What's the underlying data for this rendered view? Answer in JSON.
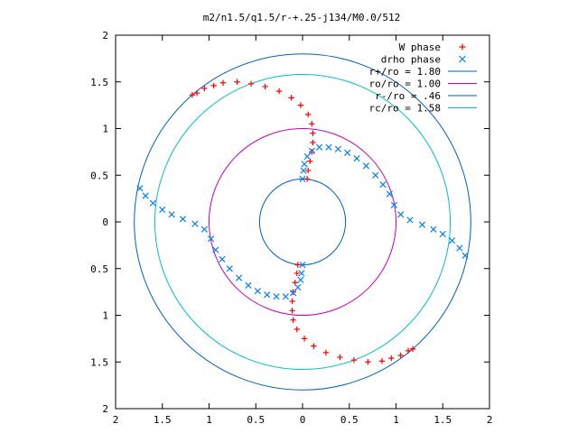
{
  "chart_data": {
    "type": "scatter",
    "title": "m2/n1.5/q1.5/r-+.25-j134/M0.0/512",
    "xlabel": "",
    "ylabel": "",
    "xlim": [
      -2,
      2
    ],
    "ylim": [
      -2,
      2
    ],
    "xtick_labels": [
      "2",
      "1.5",
      "1",
      "0.5",
      "0",
      "0.5",
      "1",
      "1.5",
      "2"
    ],
    "ytick_labels": [
      "2",
      "1.5",
      "1",
      "0.5",
      "0",
      "0.5",
      "1",
      "1.5",
      "2"
    ],
    "grid": false,
    "legend_position": "top-right",
    "legend": [
      {
        "label": "W phase",
        "marker": "+",
        "color": "#ff0000"
      },
      {
        "label": "drho phase",
        "marker": "x",
        "color": "#0080ff"
      },
      {
        "label": "r+/ro = 1.80",
        "marker": "line",
        "color": "#0060c0"
      },
      {
        "label": "ro/ro = 1.00",
        "marker": "line",
        "color": "#c000c0"
      },
      {
        "label": "r-/ro = .46",
        "marker": "line",
        "color": "#0060c0"
      },
      {
        "label": "rc/ro = 1.58",
        "marker": "line",
        "color": "#00c0c0"
      }
    ],
    "circles": [
      {
        "name": "r+/ro = 1.80",
        "radius": 1.8,
        "color": "#0060c0"
      },
      {
        "name": "ro/ro = 1.00",
        "radius": 1.0,
        "color": "#c000c0"
      },
      {
        "name": "r-/ro = .46",
        "radius": 0.46,
        "color": "#0060c0"
      },
      {
        "name": "rc/ro = 1.58",
        "radius": 1.58,
        "color": "#00c0c0"
      }
    ],
    "series": [
      {
        "name": "W phase",
        "marker": "+",
        "color": "#ff0000",
        "points": [
          [
            0.05,
            0.46
          ],
          [
            0.06,
            0.55
          ],
          [
            0.08,
            0.65
          ],
          [
            0.1,
            0.75
          ],
          [
            0.11,
            0.85
          ],
          [
            0.11,
            0.95
          ],
          [
            0.1,
            1.05
          ],
          [
            0.06,
            1.15
          ],
          [
            -0.02,
            1.25
          ],
          [
            -0.12,
            1.33
          ],
          [
            -0.25,
            1.4
          ],
          [
            -0.4,
            1.45
          ],
          [
            -0.55,
            1.48
          ],
          [
            -0.7,
            1.5
          ],
          [
            -0.85,
            1.49
          ],
          [
            -0.95,
            1.46
          ],
          [
            -1.05,
            1.43
          ],
          [
            -1.13,
            1.38
          ],
          [
            -1.18,
            1.36
          ],
          [
            -0.05,
            -0.46
          ],
          [
            -0.06,
            -0.55
          ],
          [
            -0.08,
            -0.65
          ],
          [
            -0.1,
            -0.75
          ],
          [
            -0.11,
            -0.85
          ],
          [
            -0.11,
            -0.95
          ],
          [
            -0.1,
            -1.05
          ],
          [
            -0.06,
            -1.15
          ],
          [
            0.02,
            -1.25
          ],
          [
            0.12,
            -1.33
          ],
          [
            0.25,
            -1.4
          ],
          [
            0.4,
            -1.45
          ],
          [
            0.55,
            -1.48
          ],
          [
            0.7,
            -1.5
          ],
          [
            0.85,
            -1.49
          ],
          [
            0.95,
            -1.46
          ],
          [
            1.05,
            -1.43
          ],
          [
            1.13,
            -1.38
          ],
          [
            1.18,
            -1.36
          ]
        ]
      },
      {
        "name": "drho phase",
        "marker": "x",
        "color": "#0080ff",
        "points": [
          [
            0.0,
            0.46
          ],
          [
            0.01,
            0.55
          ],
          [
            0.02,
            0.62
          ],
          [
            0.05,
            0.7
          ],
          [
            0.1,
            0.76
          ],
          [
            0.18,
            0.8
          ],
          [
            0.28,
            0.8
          ],
          [
            0.38,
            0.78
          ],
          [
            0.48,
            0.74
          ],
          [
            0.58,
            0.68
          ],
          [
            0.68,
            0.6
          ],
          [
            0.78,
            0.5
          ],
          [
            0.86,
            0.4
          ],
          [
            0.93,
            0.3
          ],
          [
            0.98,
            0.18
          ],
          [
            1.05,
            0.08
          ],
          [
            1.15,
            0.02
          ],
          [
            1.28,
            -0.03
          ],
          [
            1.4,
            -0.08
          ],
          [
            1.5,
            -0.13
          ],
          [
            1.6,
            -0.2
          ],
          [
            1.68,
            -0.28
          ],
          [
            1.74,
            -0.36
          ],
          [
            0.0,
            -0.46
          ],
          [
            -0.01,
            -0.55
          ],
          [
            -0.02,
            -0.62
          ],
          [
            -0.05,
            -0.7
          ],
          [
            -0.1,
            -0.76
          ],
          [
            -0.18,
            -0.8
          ],
          [
            -0.28,
            -0.8
          ],
          [
            -0.38,
            -0.78
          ],
          [
            -0.48,
            -0.74
          ],
          [
            -0.58,
            -0.68
          ],
          [
            -0.68,
            -0.6
          ],
          [
            -0.78,
            -0.5
          ],
          [
            -0.86,
            -0.4
          ],
          [
            -0.93,
            -0.3
          ],
          [
            -0.98,
            -0.18
          ],
          [
            -1.05,
            -0.08
          ],
          [
            -1.15,
            -0.02
          ],
          [
            -1.28,
            0.03
          ],
          [
            -1.4,
            0.08
          ],
          [
            -1.5,
            0.13
          ],
          [
            -1.6,
            0.2
          ],
          [
            -1.68,
            0.28
          ],
          [
            -1.74,
            0.36
          ]
        ]
      }
    ]
  }
}
